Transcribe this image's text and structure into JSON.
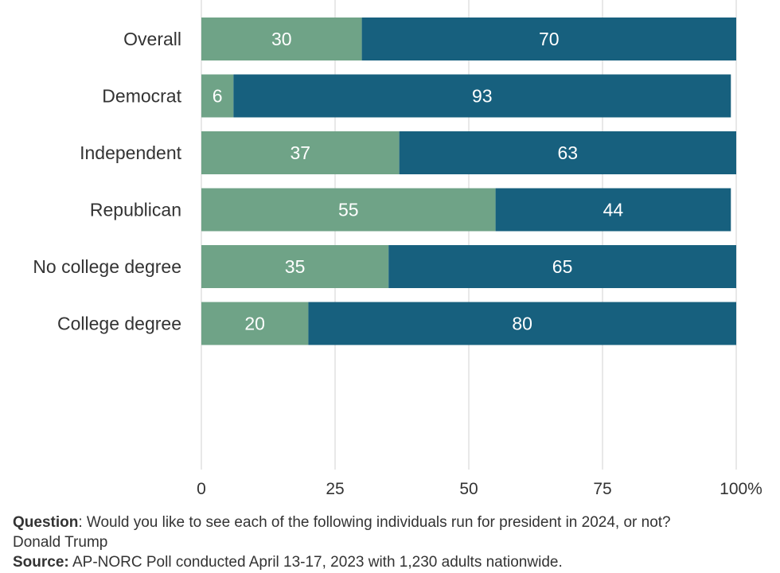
{
  "chart_data": {
    "type": "bar",
    "orientation": "horizontal",
    "stacked": true,
    "categories": [
      "Overall",
      "Democrat",
      "Independent",
      "Republican",
      "No college degree",
      "College degree"
    ],
    "groups": [
      [
        "Overall"
      ],
      [
        "Democrat",
        "Independent",
        "Republican"
      ],
      [
        "No college degree",
        "College degree"
      ]
    ],
    "series": [
      {
        "values": [
          30,
          6,
          37,
          55,
          35,
          20
        ],
        "color": "#6fa387"
      },
      {
        "values": [
          70,
          93,
          63,
          44,
          65,
          80
        ],
        "color": "#17607e"
      }
    ],
    "xlim": [
      0,
      100
    ],
    "xticks": [
      "0",
      "25",
      "50",
      "75",
      "100%"
    ],
    "xtick_values": [
      0,
      25,
      50,
      75,
      100
    ],
    "grid": true,
    "title": ""
  },
  "footer": {
    "question_label": "Question",
    "question_text": ": Would you like to see each of the following individuals run for president in 2024, or not?",
    "subject": "Donald Trump",
    "source_label": "Source:",
    "source_text": " AP-NORC Poll conducted April 13-17, 2023 with 1,230 adults nationwide."
  }
}
